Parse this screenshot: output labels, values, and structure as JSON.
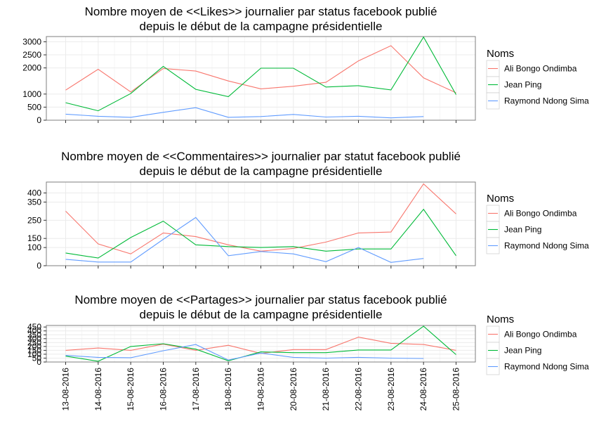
{
  "chart_data": [
    {
      "type": "line",
      "title": "Nombre moyen de <<Likes>> journalier par status facebook publié",
      "subtitle": "depuis le début de la campagne présidentielle",
      "xlabel": "",
      "ylabel": "",
      "ylim": [
        0,
        3200
      ],
      "yticks": [
        0,
        500,
        1000,
        2000,
        2500,
        3000
      ],
      "legend_title": "Noms",
      "legend_position": "right",
      "grid": true,
      "categories": [
        "13-08-2016",
        "14-08-2016",
        "15-08-2016",
        "16-08-2016",
        "17-08-2016",
        "18-08-2016",
        "19-08-2016",
        "20-08-2016",
        "21-08-2016",
        "22-08-2016",
        "23-08-2016",
        "24-08-2016",
        "25-08-2016"
      ],
      "series": [
        {
          "name": "Ali Bongo Ondimba",
          "color": "#F8766D",
          "values": [
            1150,
            1950,
            1080,
            1980,
            1880,
            1500,
            1200,
            1300,
            1450,
            2270,
            2850,
            1620,
            1050
          ]
        },
        {
          "name": "Jean Ping",
          "color": "#00BA38",
          "values": [
            670,
            360,
            1020,
            2060,
            1180,
            900,
            1990,
            1990,
            1270,
            1320,
            1160,
            3180,
            980
          ]
        },
        {
          "name": "Raymond Ndong Sima",
          "color": "#619CFF",
          "values": [
            230,
            150,
            110,
            300,
            480,
            110,
            140,
            220,
            120,
            150,
            90,
            140,
            null
          ]
        }
      ]
    },
    {
      "type": "line",
      "title": "Nombre moyen de <<Commentaires>> journalier par statut facebook publié",
      "subtitle": "depuis le début de la campagne présidentielle",
      "xlabel": "",
      "ylabel": "",
      "ylim": [
        0,
        460
      ],
      "yticks": [
        0,
        100,
        150,
        250,
        350,
        400
      ],
      "legend_title": "Noms",
      "legend_position": "right",
      "grid": true,
      "categories": [
        "13-08-2016",
        "14-08-2016",
        "15-08-2016",
        "16-08-2016",
        "17-08-2016",
        "18-08-2016",
        "19-08-2016",
        "20-08-2016",
        "21-08-2016",
        "22-08-2016",
        "23-08-2016",
        "24-08-2016",
        "25-08-2016"
      ],
      "series": [
        {
          "name": "Ali Bongo Ondimba",
          "color": "#F8766D",
          "values": [
            300,
            120,
            65,
            180,
            160,
            115,
            80,
            95,
            130,
            180,
            185,
            450,
            285
          ]
        },
        {
          "name": "Jean Ping",
          "color": "#00BA38",
          "values": [
            70,
            42,
            155,
            245,
            115,
            105,
            100,
            105,
            80,
            92,
            92,
            310,
            55
          ]
        },
        {
          "name": "Raymond Ndong Sima",
          "color": "#619CFF",
          "values": [
            35,
            20,
            20,
            145,
            265,
            55,
            78,
            65,
            22,
            100,
            18,
            40,
            null
          ]
        }
      ]
    },
    {
      "type": "line",
      "title": "Nombre moyen de <<Partages>> journalier par status facebook publié",
      "subtitle": "depuis le début de la campagne présidentielle",
      "xlabel": "",
      "ylabel": "",
      "ylim": [
        0,
        470
      ],
      "yticks": [
        0,
        50,
        100,
        150,
        200,
        250,
        300,
        350,
        400,
        450
      ],
      "legend_title": "Noms",
      "legend_position": "right",
      "grid": true,
      "categories": [
        "13-08-2016",
        "14-08-2016",
        "15-08-2016",
        "16-08-2016",
        "17-08-2016",
        "18-08-2016",
        "19-08-2016",
        "20-08-2016",
        "21-08-2016",
        "22-08-2016",
        "23-08-2016",
        "24-08-2016",
        "25-08-2016"
      ],
      "series": [
        {
          "name": "Ali Bongo Ondimba",
          "color": "#F8766D",
          "values": [
            150,
            180,
            150,
            230,
            150,
            215,
            110,
            160,
            160,
            320,
            240,
            225,
            150
          ]
        },
        {
          "name": "Jean Ping",
          "color": "#00BA38",
          "values": [
            75,
            10,
            200,
            235,
            165,
            15,
            130,
            120,
            120,
            155,
            155,
            460,
            95
          ]
        },
        {
          "name": "Raymond Ndong Sima",
          "color": "#619CFF",
          "values": [
            85,
            60,
            55,
            145,
            225,
            25,
            115,
            60,
            50,
            60,
            50,
            45,
            null
          ]
        }
      ]
    }
  ]
}
